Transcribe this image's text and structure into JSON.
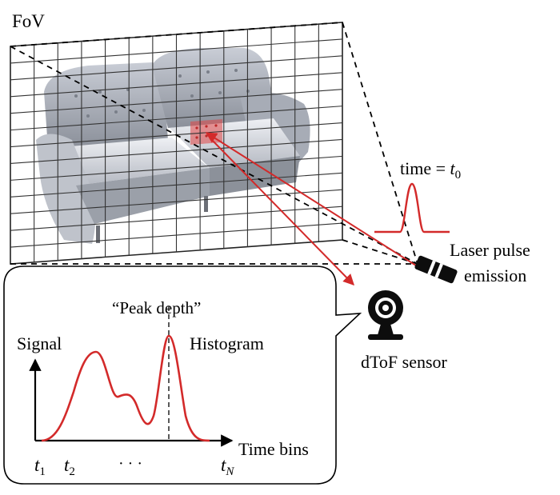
{
  "labels": {
    "fov": "FoV",
    "time_prefix": "time = ",
    "time_var": "t",
    "time_sub": "0",
    "laser_line1": "Laser pulse",
    "laser_line2": "emission",
    "sensor": "dToF sensor",
    "peak_depth": "“Peak depth”",
    "signal": "Signal",
    "histogram": "Histogram",
    "time_bins": "Time bins",
    "t1_var": "t",
    "t1_sub": "1",
    "t2_var": "t",
    "t2_sub": "2",
    "ellipsis": "· · ·",
    "tN_var": "t",
    "tN_sub": "N"
  },
  "icons": {
    "sofa": "sofa-image",
    "sensor": "webcam-icon",
    "laser": "laser-emitter-icon"
  },
  "colors": {
    "ray": "#d32a2a",
    "pulse": "#d32a2a",
    "histogram_curve": "#d32a2a",
    "highlight_patch": "#e04545"
  }
}
